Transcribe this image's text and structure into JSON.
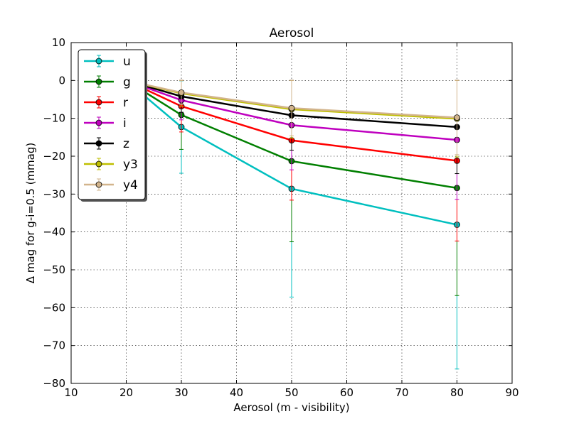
{
  "chart_data": {
    "type": "line",
    "title": "Aerosol",
    "xlabel": "Aerosol (m - visibility)",
    "ylabel": "Δ mag for g-i=0.5 (mmag)",
    "xlim": [
      10,
      90
    ],
    "ylim": [
      -80,
      10
    ],
    "xticks": [
      "10",
      "20",
      "30",
      "40",
      "50",
      "60",
      "70",
      "80",
      "90"
    ],
    "yticks": [
      "10",
      "0",
      "−10",
      "−20",
      "−30",
      "−40",
      "−50",
      "−60",
      "−70",
      "−80"
    ],
    "grid": true,
    "legend_position": "top-left",
    "x": [
      20,
      30,
      50,
      80
    ],
    "series": [
      {
        "name": "u",
        "color": "#00bfbf",
        "values": [
          0,
          -12.3,
          -28.6,
          -38.1
        ],
        "errors": [
          0,
          12.2,
          28.6,
          38.1
        ]
      },
      {
        "name": "g",
        "color": "#007f00",
        "values": [
          0,
          -9.1,
          -21.3,
          -28.4
        ],
        "errors": [
          0,
          9.1,
          21.3,
          28.4
        ]
      },
      {
        "name": "r",
        "color": "#ff0000",
        "values": [
          0,
          -6.8,
          -15.8,
          -21.2
        ],
        "errors": [
          0,
          6.8,
          15.8,
          21.2
        ]
      },
      {
        "name": "i",
        "color": "#bf00bf",
        "values": [
          0,
          -5.2,
          -11.8,
          -15.7
        ],
        "errors": [
          0,
          5.2,
          11.8,
          15.7
        ]
      },
      {
        "name": "z",
        "color": "#000000",
        "values": [
          0,
          -4.2,
          -9.2,
          -12.3
        ],
        "errors": [
          0,
          4.2,
          9.2,
          12.3
        ]
      },
      {
        "name": "y3",
        "color": "#bfbf00",
        "values": [
          0,
          -3.4,
          -7.6,
          -10.1
        ],
        "errors": [
          0,
          3.4,
          7.6,
          10.1
        ]
      },
      {
        "name": "y4",
        "color": "#d2b48c",
        "values": [
          0,
          -3.2,
          -7.3,
          -9.8
        ],
        "errors": [
          0,
          3.2,
          7.3,
          9.8
        ]
      }
    ]
  }
}
